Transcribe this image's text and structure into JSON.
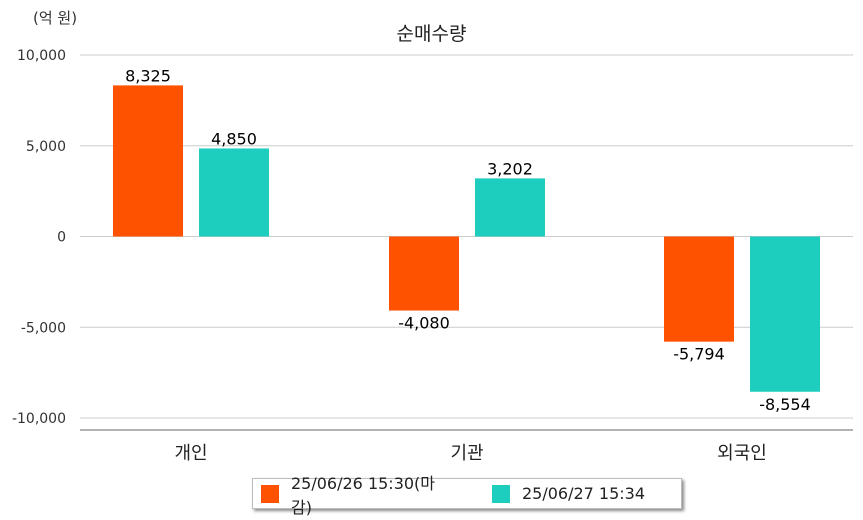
{
  "colors": {
    "series1": "#FF5200",
    "series2": "#1DCDBE",
    "grid": "#cccccc",
    "axis": "#999999"
  },
  "chart_data": {
    "type": "bar",
    "title": "순매수량",
    "unit_label": "(억 원)",
    "categories": [
      "개인",
      "기관",
      "외국인"
    ],
    "series": [
      {
        "name": "25/06/26 15:30(마감)",
        "values": [
          8325,
          -4080,
          -5794
        ],
        "labels": [
          "8,325",
          "-4,080",
          "-5,794"
        ]
      },
      {
        "name": "25/06/27 15:34",
        "values": [
          4850,
          3202,
          -8554
        ],
        "labels": [
          "4,850",
          "3,202",
          "-8,554"
        ]
      }
    ],
    "ylim": [
      -10000,
      10000
    ],
    "yticks": [
      10000,
      5000,
      0,
      -5000,
      -10000
    ],
    "ytick_labels": [
      "10,000",
      "5,000",
      "0",
      "-5,000",
      "-10,000"
    ],
    "grid": true,
    "legend_position": "bottom"
  }
}
